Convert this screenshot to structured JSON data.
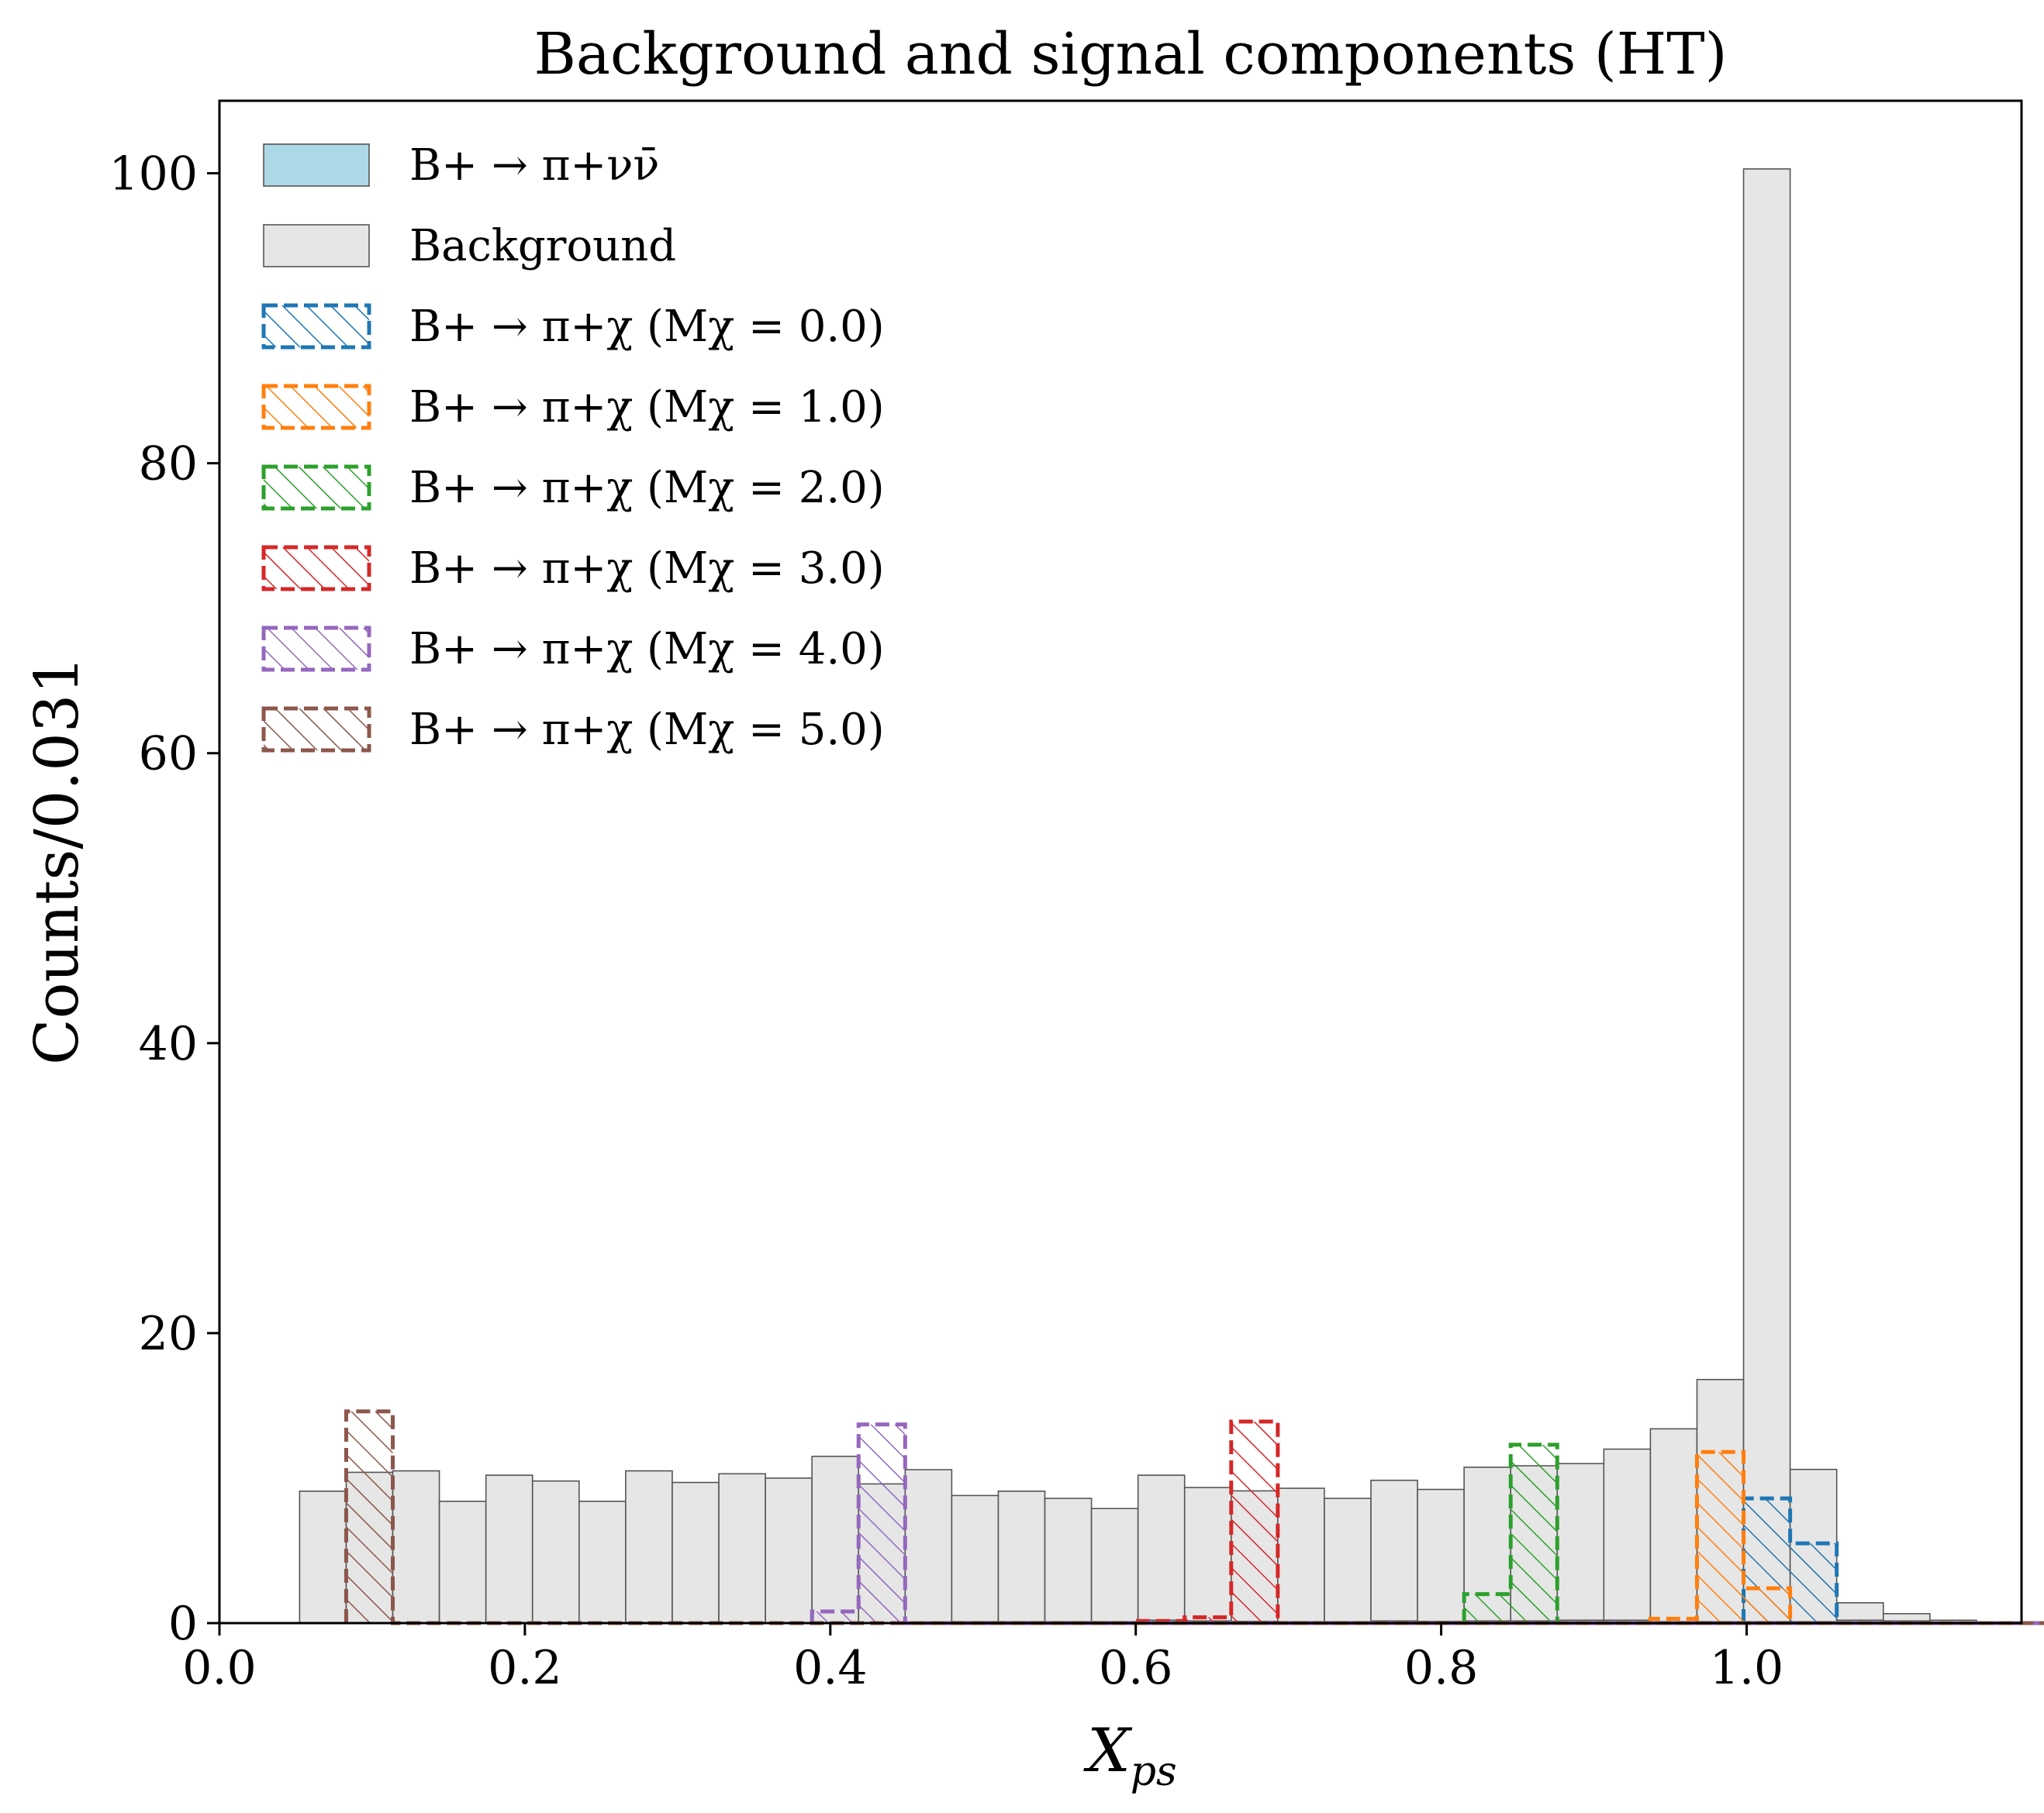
{
  "chart_data": {
    "type": "histogram",
    "title": "Background and signal components (HT)",
    "xlabel": "X_ps",
    "ylabel": "Counts/0.031",
    "xlim": [
      0.0,
      1.18
    ],
    "ylim": [
      0,
      105
    ],
    "xticks": [
      0.0,
      0.2,
      0.4,
      0.6,
      0.8,
      1.0
    ],
    "xtick_labels": [
      "0.0",
      "0.2",
      "0.4",
      "0.6",
      "0.8",
      "1.0"
    ],
    "yticks": [
      0,
      20,
      40,
      60,
      80,
      100
    ],
    "ytick_labels": [
      "0",
      "20",
      "40",
      "60",
      "80",
      "100"
    ],
    "grid": false,
    "legend_position": "upper-left",
    "bin_start": 0.0525,
    "bin_width": 0.0305,
    "stacked_series": [
      {
        "name": "B+ → π+νν̄",
        "color": "#add8e6",
        "values": [
          0,
          0,
          0,
          0,
          0,
          0,
          0,
          0,
          0,
          0,
          0,
          0,
          0,
          0.08,
          0.1,
          0.1,
          0.1,
          0.1,
          0.2,
          0.15,
          0.12,
          0.1,
          0.1,
          0.15,
          0.12,
          0.15,
          0.15,
          0.2,
          0.2,
          0.1,
          0.1,
          0.1,
          0.1,
          0.2,
          0.15,
          0,
          0,
          0,
          0,
          0,
          0
        ]
      },
      {
        "name": "Background",
        "color": "#e6e6e6",
        "values": [
          9.1,
          10.4,
          10.5,
          8.4,
          10.2,
          9.8,
          8.4,
          10.5,
          9.7,
          10.3,
          10.0,
          11.5,
          9.6,
          10.5,
          8.7,
          9.0,
          8.5,
          7.8,
          10.0,
          9.2,
          9.0,
          9.2,
          8.5,
          9.7,
          9.1,
          10.6,
          10.7,
          10.8,
          11.8,
          13.3,
          16.7,
          100.2,
          10.5,
          1.2,
          0.5,
          0.2,
          0,
          0,
          0,
          0,
          0
        ]
      }
    ],
    "signal_series": [
      {
        "name": "B+ → π+χ (Mχ = 0.0)",
        "color": "#1f77b4",
        "values": [
          0,
          0,
          0,
          0,
          0,
          0,
          0,
          0,
          0,
          0,
          0,
          0,
          0,
          0,
          0,
          0,
          0,
          0,
          0,
          0,
          0,
          0,
          0,
          0,
          0,
          0,
          0,
          0,
          0,
          0,
          0,
          8.6,
          5.5,
          0,
          0,
          0,
          0,
          0,
          0,
          0,
          0
        ]
      },
      {
        "name": "B+ → π+χ (Mχ = 1.0)",
        "color": "#ff7f0e",
        "values": [
          0,
          0,
          0,
          0,
          0,
          0,
          0,
          0,
          0,
          0,
          0,
          0,
          0,
          0,
          0,
          0,
          0,
          0,
          0,
          0,
          0,
          0,
          0,
          0,
          0,
          0,
          0,
          0,
          0,
          0.3,
          11.8,
          2.4,
          0,
          0,
          0,
          0,
          0,
          0,
          0,
          0,
          0
        ]
      },
      {
        "name": "B+ → π+χ (Mχ = 2.0)",
        "color": "#2ca02c",
        "values": [
          0,
          0,
          0,
          0,
          0,
          0,
          0,
          0,
          0,
          0,
          0,
          0,
          0,
          0,
          0,
          0,
          0,
          0,
          0,
          0,
          0,
          0,
          0,
          0,
          0,
          2.0,
          12.3,
          0,
          0,
          0,
          0,
          0,
          0,
          0,
          0,
          0,
          0,
          0,
          0,
          0,
          0
        ]
      },
      {
        "name": "B+ → π+χ (Mχ = 3.0)",
        "color": "#d62728",
        "values": [
          0,
          0,
          0,
          0,
          0,
          0,
          0,
          0,
          0,
          0,
          0,
          0,
          0,
          0,
          0,
          0,
          0,
          0,
          0.15,
          0.4,
          13.9,
          0,
          0,
          0,
          0,
          0,
          0,
          0,
          0,
          0,
          0,
          0,
          0,
          0,
          0,
          0,
          0,
          0,
          0,
          0,
          0
        ]
      },
      {
        "name": "B+ → π+χ (Mχ = 4.0)",
        "color": "#9467bd",
        "values": [
          0,
          0,
          0,
          0,
          0,
          0,
          0,
          0,
          0,
          0,
          0,
          0.8,
          13.7,
          0,
          0,
          0,
          0,
          0,
          0,
          0,
          0,
          0,
          0,
          0,
          0,
          0,
          0,
          0,
          0,
          0,
          0,
          0,
          0,
          0,
          0,
          0,
          0,
          0,
          0,
          0,
          0
        ]
      },
      {
        "name": "B+ → π+χ (Mχ = 5.0)",
        "color": "#8c564b",
        "values": [
          0,
          14.6,
          0,
          0,
          0,
          0,
          0,
          0,
          0,
          0,
          0,
          0,
          0,
          0,
          0,
          0,
          0,
          0,
          0,
          0,
          0,
          0,
          0,
          0,
          0,
          0,
          0,
          0,
          0,
          0,
          0,
          0,
          0,
          0,
          0,
          0,
          0,
          0,
          0,
          0,
          0
        ]
      }
    ]
  }
}
